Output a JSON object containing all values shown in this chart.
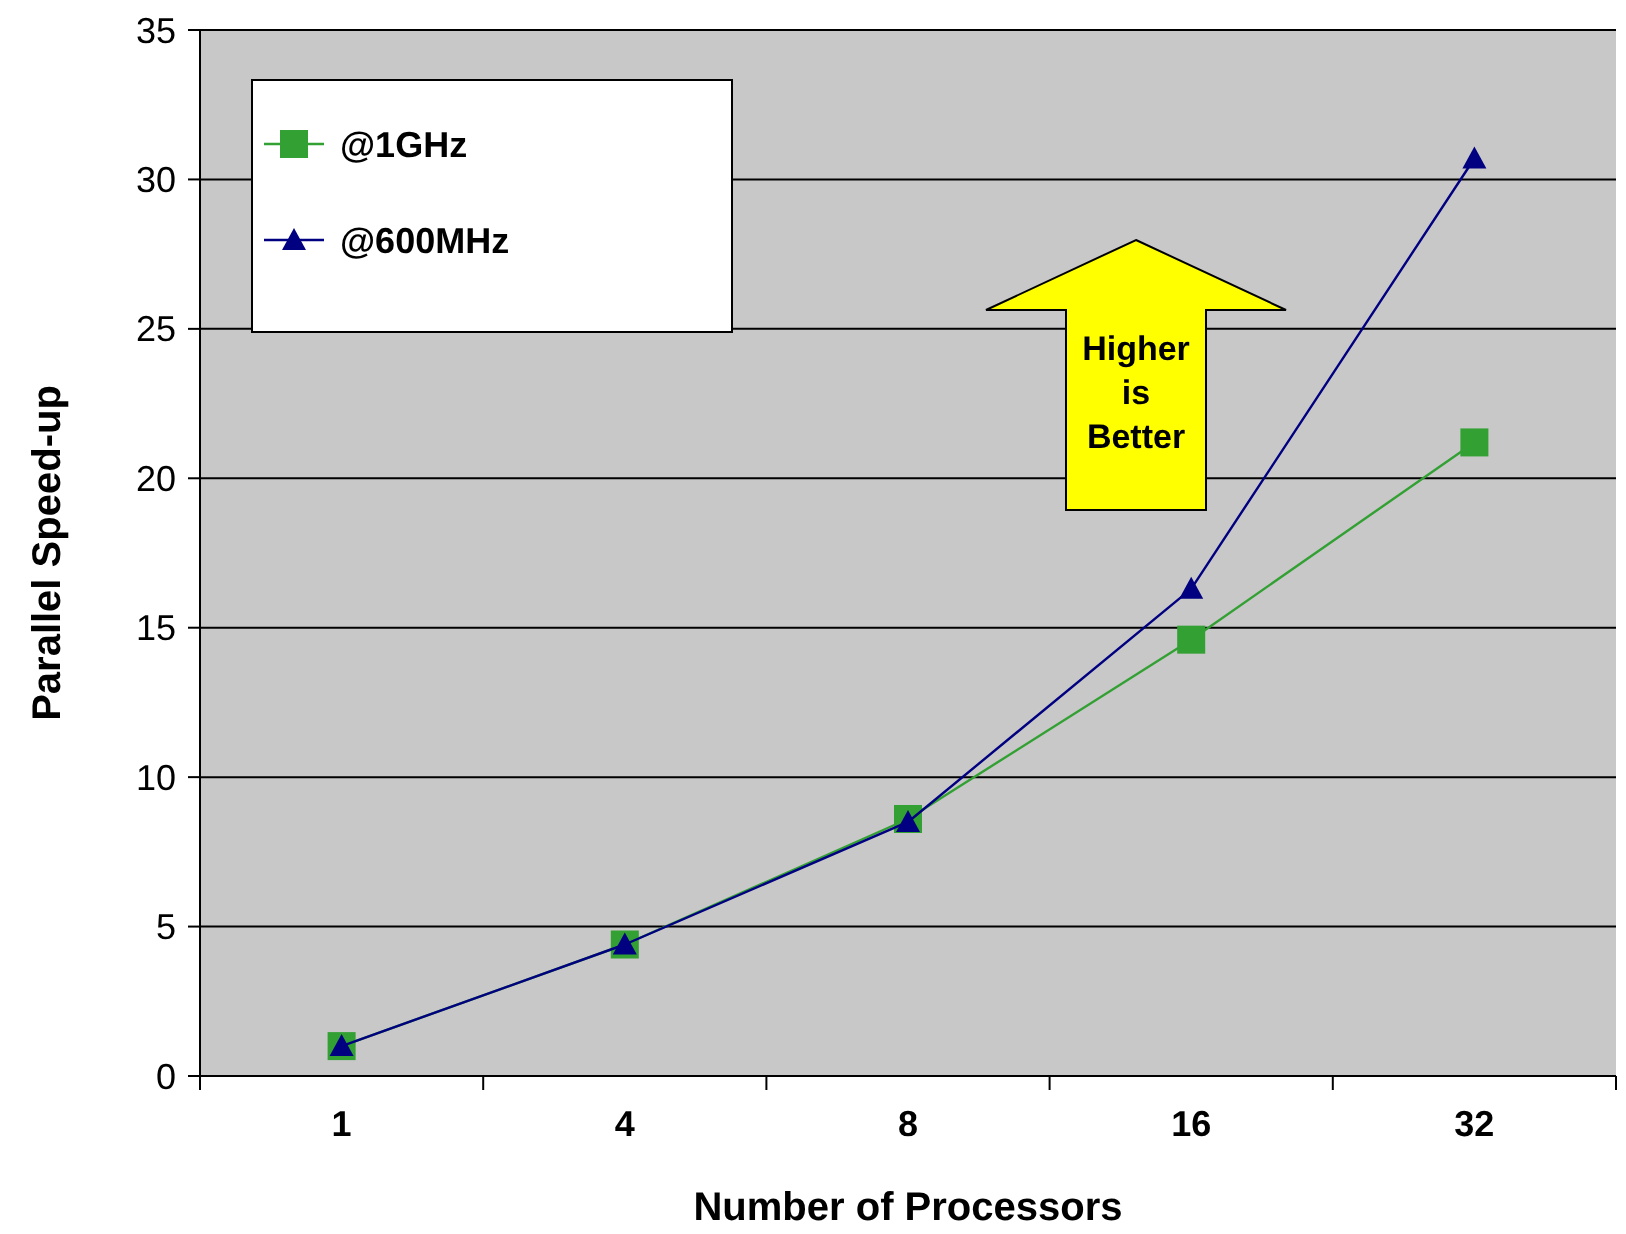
{
  "chart_data": {
    "type": "line",
    "xlabel": "Number of Processors",
    "ylabel": "Parallel Speed-up",
    "categories": [
      "1",
      "4",
      "8",
      "16",
      "32"
    ],
    "series": [
      {
        "name": "@1GHz",
        "color": "#33a033",
        "marker": "square",
        "values": [
          1,
          4.4,
          8.6,
          14.6,
          21.2
        ]
      },
      {
        "name": "@600MHz",
        "color": "#000080",
        "marker": "triangle",
        "values": [
          1,
          4.4,
          8.5,
          16.3,
          30.7
        ]
      }
    ],
    "ylim": [
      0,
      35
    ],
    "yticks": [
      0,
      5,
      10,
      15,
      20,
      25,
      30,
      35
    ],
    "grid": "y",
    "legend": "top left",
    "annotations": [
      "Higher is Better"
    ]
  }
}
